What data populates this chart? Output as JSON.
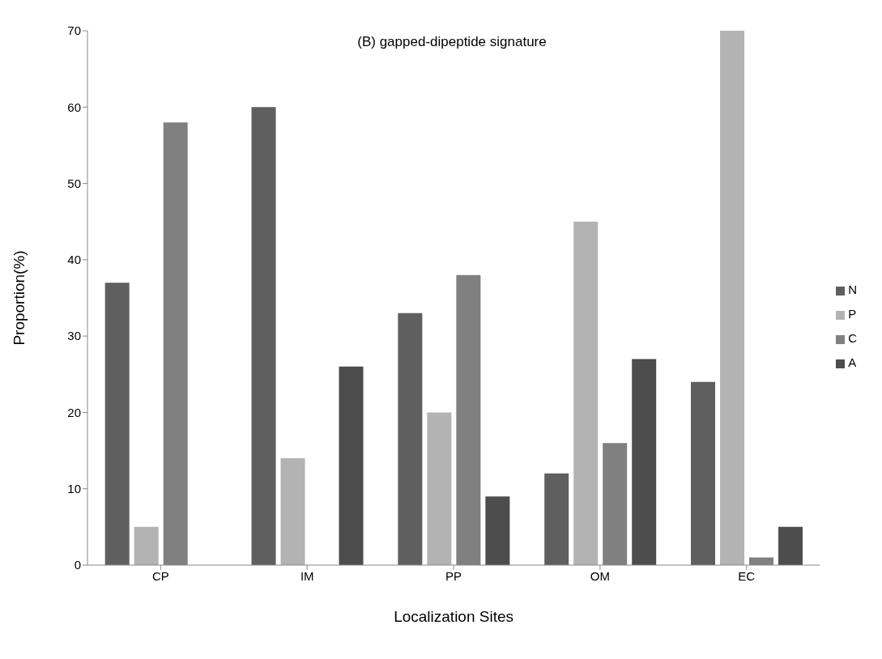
{
  "chart_data": {
    "type": "bar",
    "title": "(B) gapped-dipeptide signature",
    "xlabel": "Localization Sites",
    "ylabel": "Proportion(%)",
    "categories": [
      "CP",
      "IM",
      "PP",
      "OM",
      "EC"
    ],
    "series": [
      {
        "name": "N",
        "color": "#5f5f5f",
        "values": [
          37,
          60,
          33,
          12,
          24
        ]
      },
      {
        "name": "P",
        "color": "#b3b3b3",
        "values": [
          5,
          14,
          20,
          45,
          70
        ]
      },
      {
        "name": "C",
        "color": "#808080",
        "values": [
          58,
          0,
          38,
          16,
          1
        ]
      },
      {
        "name": "A",
        "color": "#4d4d4d",
        "values": [
          0,
          26,
          9,
          27,
          5
        ]
      }
    ],
    "ylim": [
      0,
      70
    ],
    "yticks": [
      0,
      10,
      20,
      30,
      40,
      50,
      60,
      70
    ],
    "grid": false,
    "legend": "right"
  }
}
